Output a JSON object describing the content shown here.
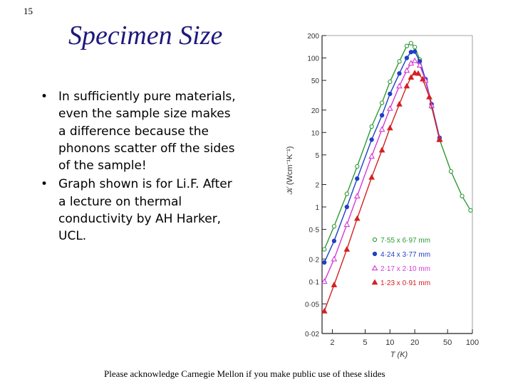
{
  "slide": {
    "number": "15",
    "title": "Specimen Size",
    "footer": "Please acknowledge Carnegie Mellon if you make public use of these slides"
  },
  "bullets": [
    "In sufficiently pure materials, even the sample size makes a difference because the phonons scatter off the sides of the sample!",
    "Graph shown is for Li.F. After a lecture on thermal conductivity by AH Harker, UCL."
  ],
  "chart_data": {
    "type": "scatter",
    "x_scale": "log",
    "y_scale": "log",
    "xlabel": "T (K)",
    "ylabel": "𝒦 (Wcm⁻¹K⁻¹)",
    "xlim": [
      1.5,
      100
    ],
    "ylim": [
      0.02,
      200
    ],
    "x_ticks": [
      "2",
      "5",
      "10",
      "20",
      "50",
      "100"
    ],
    "y_ticks": [
      "0·02",
      "0·05",
      "0·1",
      "0·2",
      "0·5",
      "1",
      "2",
      "5",
      "10",
      "20",
      "50",
      "100",
      "200"
    ],
    "legend_position": "lower-right",
    "series": [
      {
        "name": "7·55 x 6·97 mm",
        "marker": "circle-open",
        "color": "#2e9a35",
        "x": [
          1.6,
          2.1,
          3,
          4,
          6,
          8,
          10,
          13,
          16,
          18,
          20,
          23,
          27,
          32,
          40,
          55,
          75,
          95
        ],
        "y": [
          0.27,
          0.55,
          1.5,
          3.5,
          12,
          25,
          48,
          90,
          145,
          158,
          140,
          95,
          50,
          22,
          8,
          3,
          1.4,
          0.9
        ]
      },
      {
        "name": "4·24 x 3·77 mm",
        "marker": "circle-filled",
        "color": "#1f3fc4",
        "x": [
          1.6,
          2.1,
          3,
          4,
          6,
          8,
          10,
          13,
          16,
          18,
          20,
          23,
          27,
          32,
          40
        ],
        "y": [
          0.18,
          0.35,
          1,
          2.4,
          8,
          17,
          33,
          62,
          100,
          120,
          122,
          90,
          52,
          24,
          8.5
        ]
      },
      {
        "name": "2·17 x 2·10 mm",
        "marker": "triangle-open",
        "color": "#d43ad4",
        "x": [
          1.6,
          2.1,
          3,
          4,
          6,
          8,
          10,
          13,
          16,
          18,
          20,
          23,
          27,
          32,
          40
        ],
        "y": [
          0.1,
          0.2,
          0.58,
          1.4,
          4.8,
          11,
          21,
          42,
          68,
          85,
          92,
          80,
          50,
          23,
          8.2
        ]
      },
      {
        "name": "1·23 x 0·91 mm",
        "marker": "triangle-filled",
        "color": "#d42020",
        "x": [
          1.6,
          2.1,
          3,
          4,
          6,
          8,
          10,
          13,
          16,
          18,
          20,
          22,
          25,
          30,
          40
        ],
        "y": [
          0.04,
          0.09,
          0.27,
          0.7,
          2.5,
          5.8,
          11.5,
          24,
          42,
          55,
          63,
          62,
          52,
          30,
          8
        ]
      }
    ]
  }
}
